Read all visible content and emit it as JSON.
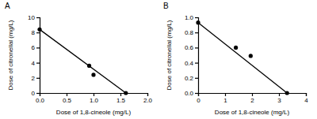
{
  "chart_data": [
    {
      "type": "scatter",
      "title": "A",
      "x_label": "Dose of 1,8-cineole (mg/L)",
      "y_label": "Dose of citronellal (mg/L)",
      "xlim": [
        0,
        2
      ],
      "xticks": [
        {
          "value": 0,
          "label": "0.0"
        },
        {
          "value": 0.5,
          "label": "0.5"
        },
        {
          "value": 1,
          "label": "1.0"
        },
        {
          "value": 1.5,
          "label": "1.5"
        },
        {
          "value": 2,
          "label": "2.0"
        }
      ],
      "ylim": [
        0,
        10
      ],
      "yticks": [
        0,
        2,
        4,
        6,
        8,
        10
      ],
      "color": "#000000",
      "series": [
        {
          "type": "scatter",
          "marker": "circle",
          "x": [
            0,
            0.92,
            1.0,
            1.6
          ],
          "values": [
            8.4,
            3.6,
            2.4,
            0
          ]
        },
        {
          "type": "line",
          "line_style": "solid",
          "x": [
            0,
            1.6
          ],
          "values": [
            8.4,
            0
          ]
        }
      ]
    },
    {
      "type": "scatter",
      "title": "B",
      "x_label": "Dose of 1,8-cineole (mg/L)",
      "y_label": "Dose of citronellal (mg/L)",
      "xlim": [
        0,
        4
      ],
      "xticks": [
        0,
        1,
        2,
        3,
        4
      ],
      "ylim": [
        0,
        1
      ],
      "yticks": [
        {
          "value": 0,
          "label": "0.0"
        },
        {
          "value": 0.2,
          "label": "0.2"
        },
        {
          "value": 0.4,
          "label": "0.4"
        },
        {
          "value": 0.6,
          "label": "0.6"
        },
        {
          "value": 0.8,
          "label": "0.8"
        },
        {
          "value": 1,
          "label": "1.0"
        }
      ],
      "color": "#000000",
      "series": [
        {
          "type": "scatter",
          "marker": "circle",
          "x": [
            0,
            1.4,
            1.95,
            3.3
          ],
          "values": [
            0.93,
            0.6,
            0.49,
            0
          ]
        },
        {
          "type": "line",
          "line_style": "solid",
          "x": [
            0,
            3.3
          ],
          "values": [
            0.93,
            0
          ]
        }
      ]
    }
  ]
}
